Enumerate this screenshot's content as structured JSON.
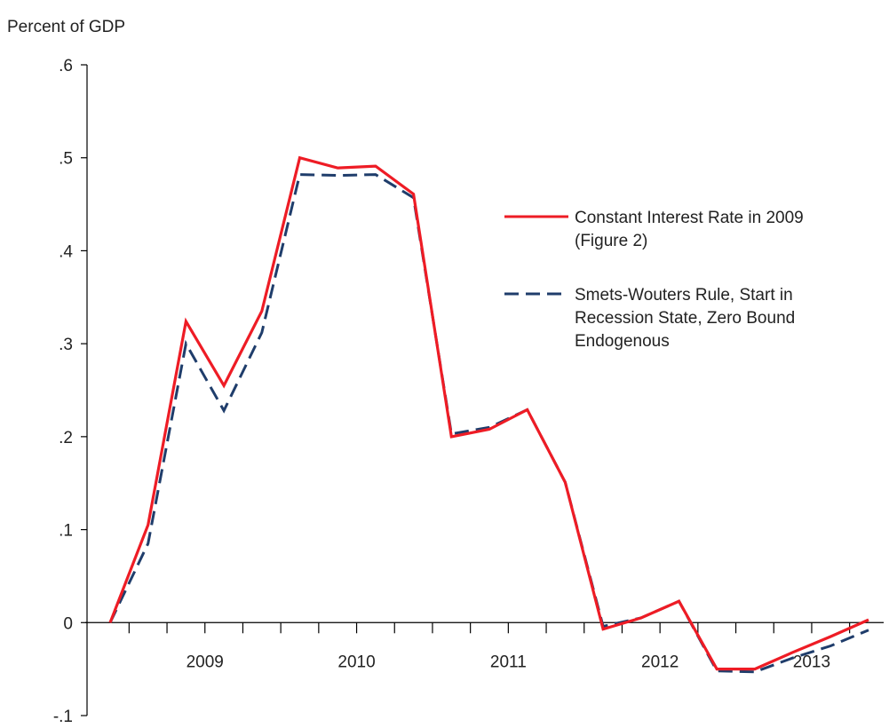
{
  "chart_data": {
    "type": "line",
    "ylabel": "Percent of GDP",
    "xlabel": "",
    "ylim": [
      -0.1,
      0.6
    ],
    "yticks": [
      {
        "value": 0.6,
        "label": ".6"
      },
      {
        "value": 0.5,
        "label": ".5"
      },
      {
        "value": 0.4,
        "label": ".4"
      },
      {
        "value": 0.3,
        "label": ".3"
      },
      {
        "value": 0.2,
        "label": ".2"
      },
      {
        "value": 0.1,
        "label": ".1"
      },
      {
        "value": 0.0,
        "label": "0"
      },
      {
        "value": -0.1,
        "label": "-.1"
      }
    ],
    "x": [
      "2008Q4",
      "2009Q1",
      "2009Q2",
      "2009Q3",
      "2009Q4",
      "2010Q1",
      "2010Q2",
      "2010Q3",
      "2010Q4",
      "2011Q1",
      "2011Q2",
      "2011Q3",
      "2011Q4",
      "2012Q1",
      "2012Q2",
      "2012Q3",
      "2012Q4",
      "2013Q1",
      "2013Q2",
      "2013Q3",
      "2013Q4"
    ],
    "year_labels": [
      "2009",
      "2010",
      "2011",
      "2012",
      "2013"
    ],
    "grid": false,
    "legend_position": "right",
    "series": [
      {
        "name": "Constant Interest Rate in 2009 (Figure 2)",
        "legend_lines": [
          "Constant Interest Rate in 2009",
          "(Figure 2)"
        ],
        "color": "#ee1c25",
        "style": "solid",
        "values": [
          0.0,
          0.105,
          0.324,
          0.255,
          0.335,
          0.5,
          0.489,
          0.491,
          0.461,
          0.2,
          0.208,
          0.229,
          0.151,
          -0.007,
          0.005,
          0.023,
          -0.05,
          -0.05,
          -0.032,
          -0.015,
          0.003
        ]
      },
      {
        "name": "Smets-Wouters Rule, Start in Recession State, Zero Bound Endogenous",
        "legend_lines": [
          "Smets-Wouters Rule, Start in",
          "Recession State, Zero Bound",
          "Endogenous"
        ],
        "color": "#1f3d6b",
        "style": "dashed",
        "values": [
          0.0,
          0.085,
          0.3,
          0.228,
          0.312,
          0.482,
          0.481,
          0.482,
          0.457,
          0.203,
          0.21,
          0.229,
          0.151,
          -0.004,
          0.005,
          0.023,
          -0.052,
          -0.053,
          -0.038,
          -0.025,
          -0.008
        ]
      }
    ]
  }
}
